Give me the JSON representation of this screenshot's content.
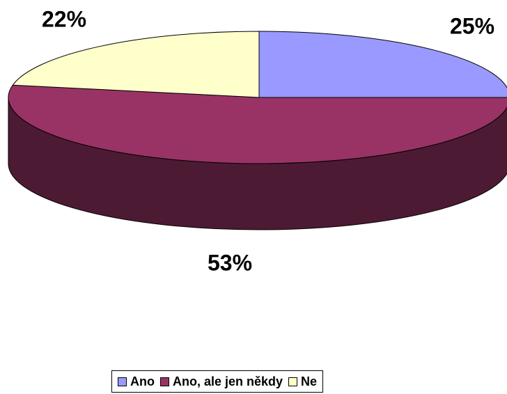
{
  "chart_data": {
    "type": "pie3d",
    "categories": [
      "Ano",
      "Ano, ale jen někdy",
      "Ne"
    ],
    "values": [
      25,
      53,
      22
    ],
    "value_labels": [
      "25%",
      "53%",
      "22%"
    ],
    "colors": [
      "#9999ff",
      "#993366",
      "#ffffcc"
    ],
    "legend": "bottom"
  }
}
